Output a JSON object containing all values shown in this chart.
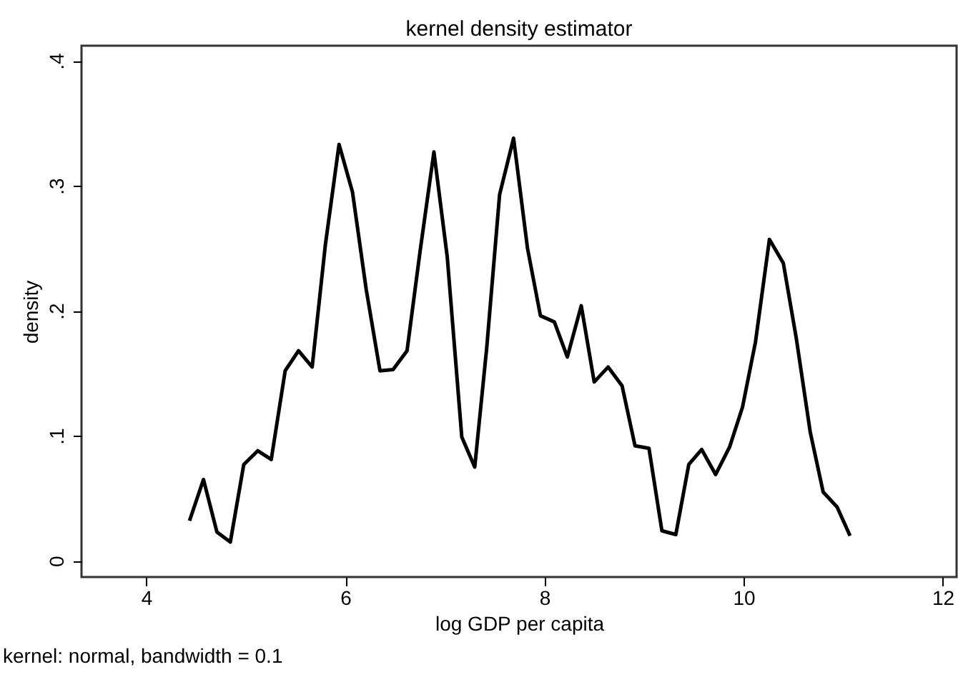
{
  "chart_data": {
    "type": "line",
    "title": "kernel density estimator",
    "xlabel": "log GDP per capita",
    "ylabel": "density",
    "annotations": [
      "kernel: normal,  bandwidth = 0.1"
    ],
    "x": [
      4.435,
      4.575,
      4.71,
      4.845,
      4.98,
      5.12,
      5.256,
      5.396,
      5.53,
      5.667,
      5.8,
      5.937,
      6.072,
      6.21,
      6.348,
      6.48,
      6.62,
      6.75,
      6.89,
      7.024,
      7.17,
      7.3,
      7.42,
      7.55,
      7.69,
      7.83,
      7.96,
      8.1,
      8.23,
      8.37,
      8.5,
      8.64,
      8.78,
      8.91,
      9.05,
      9.18,
      9.32,
      9.45,
      9.58,
      9.72,
      9.86,
      9.99,
      10.12,
      10.26,
      10.4,
      10.53,
      10.67,
      10.8,
      10.94,
      11.07
    ],
    "series": [
      {
        "color": "#000000",
        "values": [
          0.032,
          0.065,
          0.023,
          0.015,
          0.077,
          0.088,
          0.081,
          0.152,
          0.168,
          0.155,
          0.253,
          0.333,
          0.295,
          0.217,
          0.152,
          0.153,
          0.168,
          0.247,
          0.327,
          0.243,
          0.099,
          0.075,
          0.17,
          0.293,
          0.338,
          0.25,
          0.196,
          0.191,
          0.163,
          0.204,
          0.143,
          0.155,
          0.14,
          0.092,
          0.09,
          0.024,
          0.021,
          0.077,
          0.089,
          0.069,
          0.091,
          0.123,
          0.175,
          0.257,
          0.238,
          0.178,
          0.103,
          0.055,
          0.043,
          0.02
        ]
      }
    ],
    "xlim": [
      3.35,
      12.14
    ],
    "ylim": [
      -0.013,
      0.412
    ],
    "xticks": [
      4,
      6,
      8,
      10,
      12
    ],
    "yticks": [
      0,
      {
        "value": 0.1,
        "label": ".1"
      },
      {
        "value": 0.2,
        "label": ".2"
      },
      {
        "value": 0.3,
        "label": ".3"
      },
      {
        "value": 0.4,
        "label": ".4"
      }
    ],
    "grid": false,
    "marker": "none",
    "line_style": "solid"
  }
}
